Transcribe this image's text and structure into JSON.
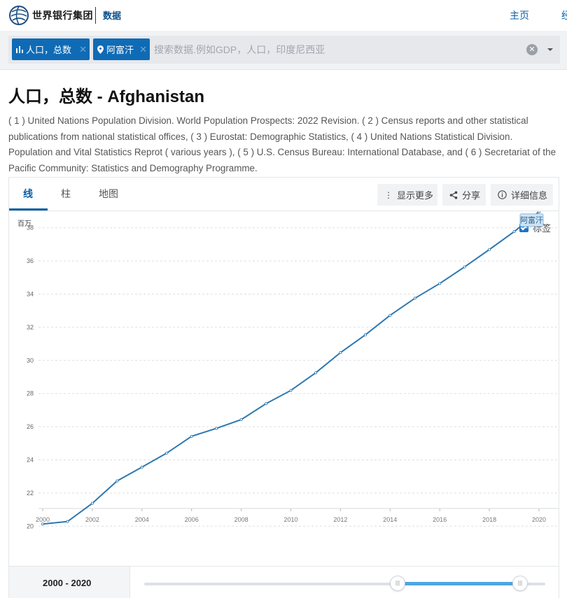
{
  "header": {
    "brand": "世界银行集团",
    "section": "数据",
    "nav_home": "主页",
    "nav_more": "经",
    "logo_icon": "globe-logo-icon"
  },
  "search": {
    "chips": [
      {
        "icon": "bar-chart-icon",
        "label": "人口，总数"
      },
      {
        "icon": "map-pin-icon",
        "label": "阿富汗"
      }
    ],
    "placeholder": "搜索数据.例如GDP，人口，印度尼西亚",
    "clear_icon": "clear-icon",
    "dropdown_icon": "chevron-down-icon"
  },
  "page": {
    "title": "人口，总数 - Afghanistan",
    "source": "( 1 ) United Nations Population Division. World Population Prospects: 2022 Revision. ( 2 ) Census reports and other statistical publications from national statistical offices, ( 3 ) Eurostat: Demographic Statistics, ( 4 ) United Nations Statistical Division. Population and Vital Statistics Reprot ( various years ), ( 5 ) U.S. Census Bureau: International Database, and ( 6 ) Secretariat of the Pacific Community: Statistics and Demography Programme."
  },
  "tabs": [
    {
      "label": "线",
      "active": true
    },
    {
      "label": "柱",
      "active": false
    },
    {
      "label": "地图",
      "active": false
    }
  ],
  "actions": {
    "more": "显示更多",
    "share": "分享",
    "details": "详细信息"
  },
  "labels_toggle": {
    "label": "标签",
    "checked": true
  },
  "range": {
    "start": "2000",
    "end": "2020",
    "separator": " - "
  },
  "colors": {
    "accent": "#0b5fa5",
    "line": "#2e78b0",
    "chip": "#0f6bb5",
    "slider_fill": "#4ea6e0"
  },
  "chart_data": {
    "type": "line",
    "ylabel": "百万",
    "ylim": [
      19,
      39
    ],
    "yticks": [
      20,
      22,
      24,
      26,
      28,
      30,
      32,
      34,
      36,
      38
    ],
    "xticks": [
      2000,
      2002,
      2004,
      2006,
      2008,
      2010,
      2012,
      2014,
      2016,
      2018,
      2020
    ],
    "xlim": [
      2000,
      2020
    ],
    "grid": true,
    "series": [
      {
        "name": "阿富汗",
        "x": [
          2000,
          2001,
          2002,
          2003,
          2004,
          2005,
          2006,
          2007,
          2008,
          2009,
          2010,
          2011,
          2012,
          2013,
          2014,
          2015,
          2016,
          2017,
          2018,
          2019,
          2020
        ],
        "values": [
          20.13,
          20.28,
          21.38,
          22.73,
          23.56,
          24.41,
          25.42,
          25.9,
          26.43,
          27.39,
          28.19,
          29.25,
          30.47,
          31.54,
          32.72,
          33.75,
          34.64,
          35.64,
          36.69,
          37.77,
          38.97
        ]
      }
    ]
  }
}
